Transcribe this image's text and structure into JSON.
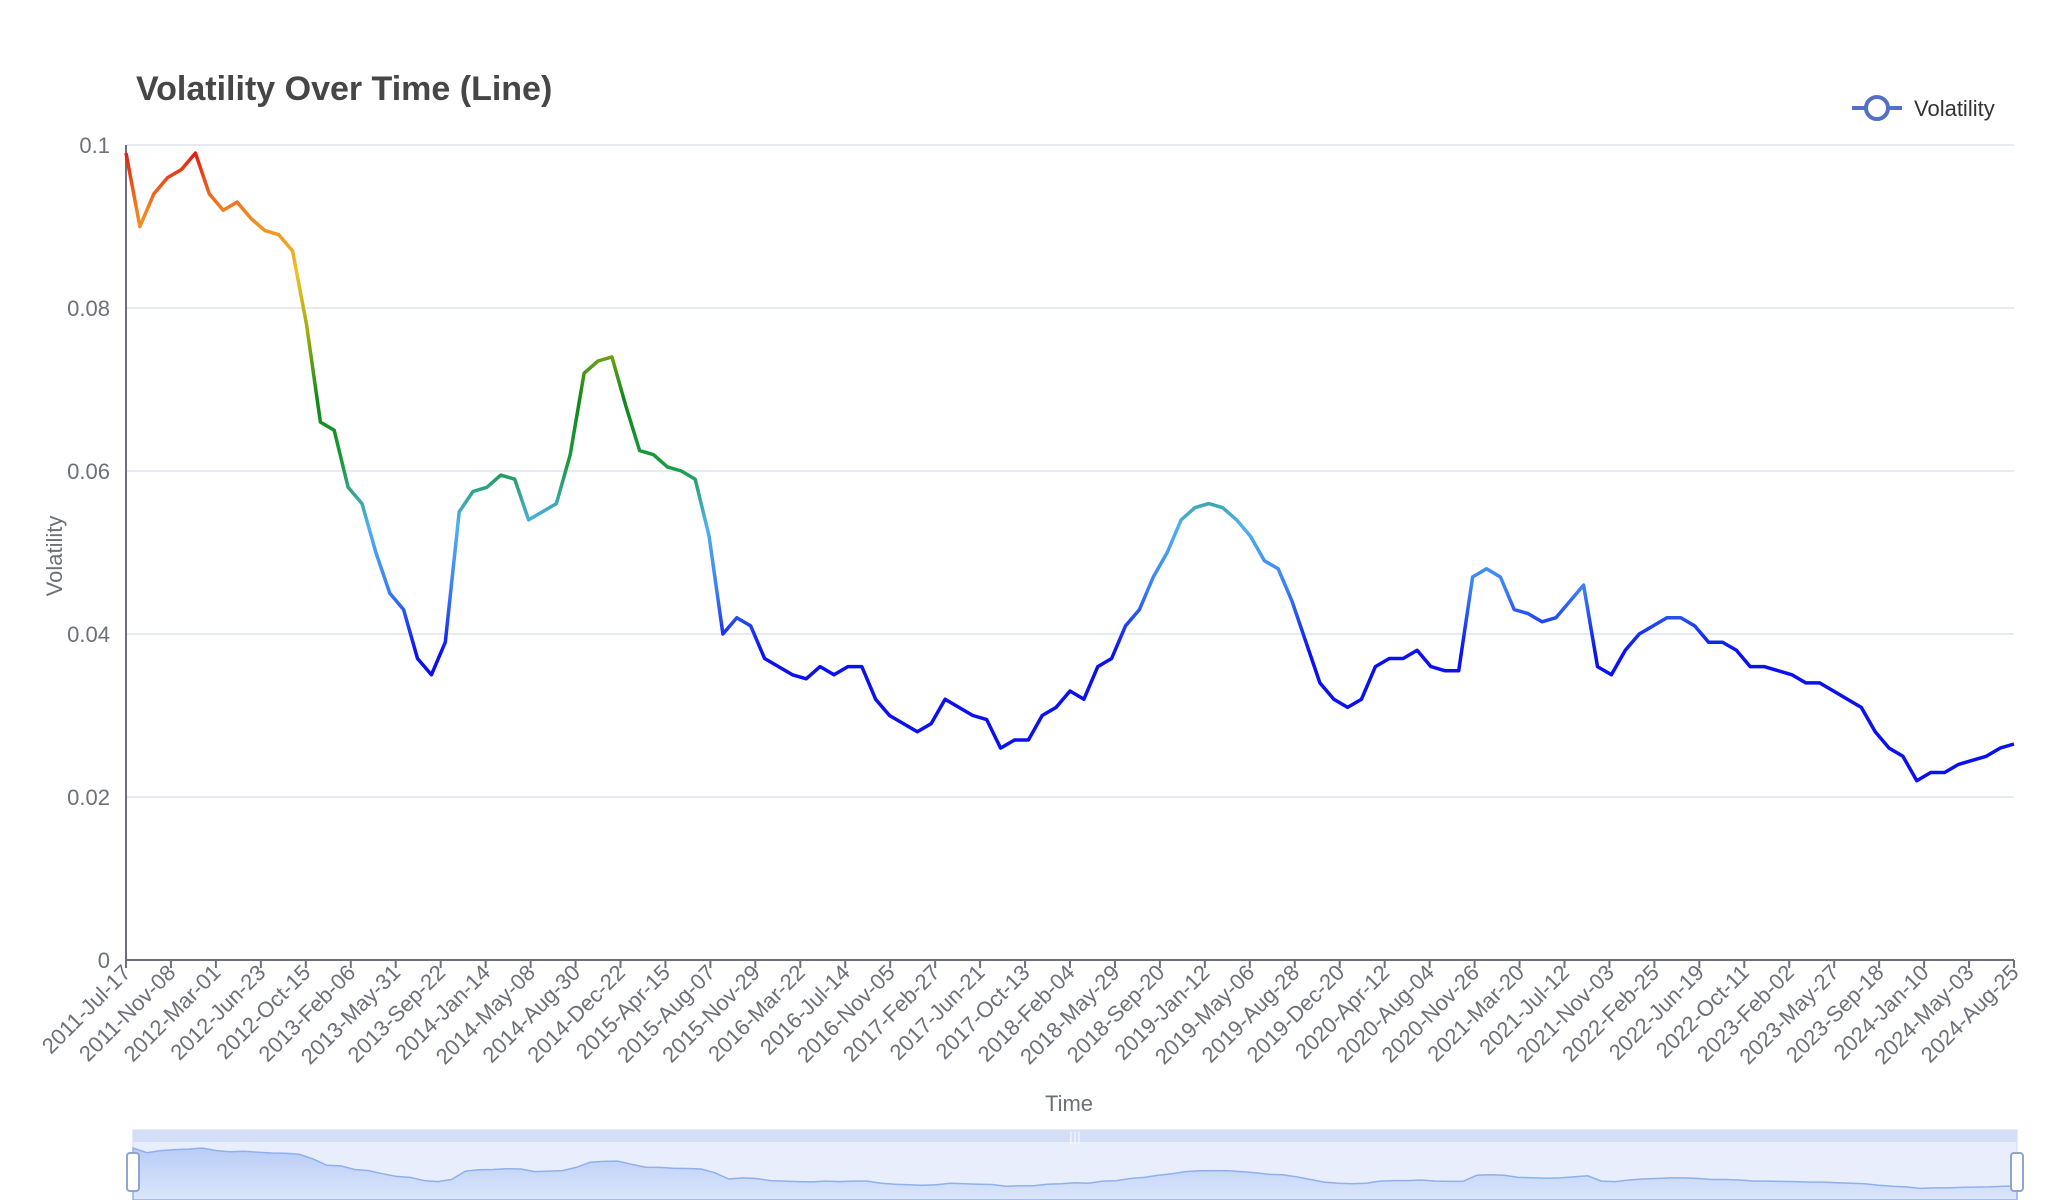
{
  "chart_data": {
    "type": "line",
    "title": "Volatility Over Time (Line)",
    "xlabel": "Time",
    "ylabel": "Volatility",
    "ylim": [
      0,
      0.1
    ],
    "yticks": [
      "0",
      "0.02",
      "0.04",
      "0.06",
      "0.08",
      "0.1"
    ],
    "legend": {
      "placement": "top-right",
      "entries": [
        "Volatility"
      ]
    },
    "grid": true,
    "x_tick_labels": [
      "2011-Jul-17",
      "2011-Nov-08",
      "2012-Mar-01",
      "2012-Jun-23",
      "2012-Oct-15",
      "2013-Feb-06",
      "2013-May-31",
      "2013-Sep-22",
      "2014-Jan-14",
      "2014-May-08",
      "2014-Aug-30",
      "2014-Dec-22",
      "2015-Apr-15",
      "2015-Aug-07",
      "2015-Nov-29",
      "2016-Mar-22",
      "2016-Jul-14",
      "2016-Nov-05",
      "2017-Feb-27",
      "2017-Jun-21",
      "2017-Oct-13",
      "2018-Feb-04",
      "2018-May-29",
      "2018-Sep-20",
      "2019-Jan-12",
      "2019-May-06",
      "2019-Aug-28",
      "2019-Dec-20",
      "2020-Apr-12",
      "2020-Aug-04",
      "2020-Nov-26",
      "2021-Mar-20",
      "2021-Jul-12",
      "2021-Nov-03",
      "2022-Feb-25",
      "2022-Jun-19",
      "2022-Oct-11",
      "2023-Feb-02",
      "2023-May-27",
      "2023-Sep-18",
      "2024-Jan-10",
      "2024-May-03",
      "2024-Aug-25"
    ],
    "series": [
      {
        "name": "Volatility",
        "x_start": "2011-Jul-17",
        "x_step_days": 14,
        "values": [
          0.099,
          0.09,
          0.094,
          0.096,
          0.097,
          0.099,
          0.094,
          0.092,
          0.093,
          0.091,
          0.0895,
          0.089,
          0.087,
          0.078,
          0.066,
          0.065,
          0.058,
          0.056,
          0.05,
          0.045,
          0.043,
          0.037,
          0.035,
          0.039,
          0.055,
          0.0575,
          0.058,
          0.0595,
          0.059,
          0.054,
          0.055,
          0.056,
          0.062,
          0.072,
          0.0735,
          0.074,
          0.068,
          0.0625,
          0.062,
          0.0605,
          0.06,
          0.059,
          0.052,
          0.04,
          0.042,
          0.041,
          0.037,
          0.036,
          0.035,
          0.0345,
          0.036,
          0.035,
          0.036,
          0.036,
          0.032,
          0.03,
          0.029,
          0.028,
          0.029,
          0.032,
          0.031,
          0.03,
          0.0295,
          0.026,
          0.027,
          0.027,
          0.03,
          0.031,
          0.033,
          0.032,
          0.036,
          0.037,
          0.041,
          0.043,
          0.047,
          0.05,
          0.054,
          0.0555,
          0.056,
          0.0555,
          0.054,
          0.052,
          0.049,
          0.048,
          0.044,
          0.039,
          0.034,
          0.032,
          0.031,
          0.032,
          0.036,
          0.037,
          0.037,
          0.038,
          0.036,
          0.0355,
          0.0355,
          0.047,
          0.048,
          0.047,
          0.043,
          0.0425,
          0.0415,
          0.042,
          0.044,
          0.046,
          0.036,
          0.035,
          0.038,
          0.04,
          0.041,
          0.042,
          0.042,
          0.041,
          0.039,
          0.039,
          0.038,
          0.036,
          0.036,
          0.0355,
          0.035,
          0.034,
          0.034,
          0.033,
          0.032,
          0.031,
          0.028,
          0.026,
          0.025,
          0.022,
          0.023,
          0.023,
          0.024,
          0.0245,
          0.025,
          0.026,
          0.0265
        ]
      }
    ]
  },
  "colors": {
    "visual_map": [
      "#0a10f0",
      "#3a7ef5",
      "#4fb0f0",
      "#1a9a3a",
      "#0e8a1a",
      "#9aaa10",
      "#f0c020",
      "#f08020",
      "#e01010"
    ],
    "legend": "#5470c6",
    "grid": "#dfe3ee",
    "axis": "#6e7079",
    "datazoom_fill": "#c9d8f8",
    "datazoom_bg": "#e8eefc"
  }
}
